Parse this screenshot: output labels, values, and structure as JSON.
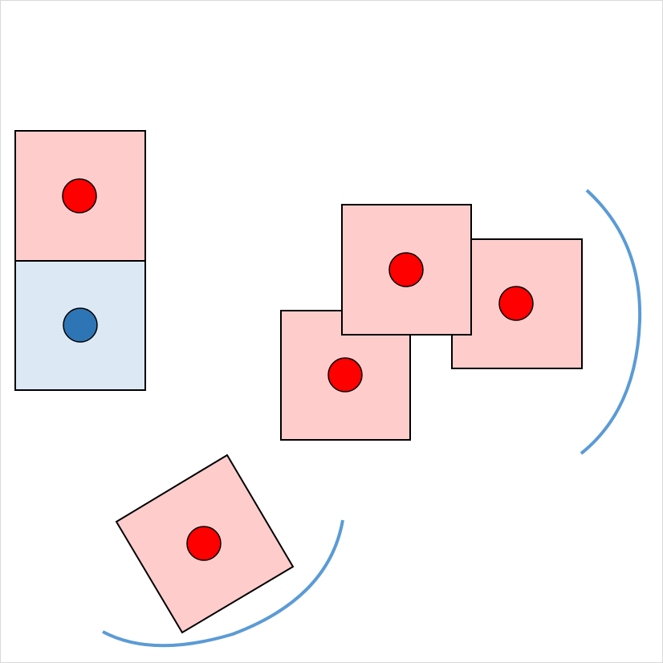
{
  "colors": {
    "background": "#ffffff",
    "frame": "#d9d9d9",
    "square_pink": "#ffcccc",
    "square_blue": "#dde8f5",
    "square_stroke": "#000000",
    "dot_red": "#ff0000",
    "dot_blue": "#2e75b6",
    "arc_blue": "#5b9bd5"
  },
  "shapes": {
    "stacked_top_square": {
      "fill": "pink",
      "dot": "red"
    },
    "stacked_bottom_square": {
      "fill": "blue",
      "dot": "blue"
    },
    "cluster_squares": [
      {
        "fill": "pink",
        "dot": "red"
      },
      {
        "fill": "pink",
        "dot": "red"
      },
      {
        "fill": "pink",
        "dot": "red"
      }
    ],
    "rotated_square": {
      "fill": "pink",
      "dot": "red"
    },
    "arcs": [
      "right-arc",
      "bottom-arc"
    ]
  }
}
